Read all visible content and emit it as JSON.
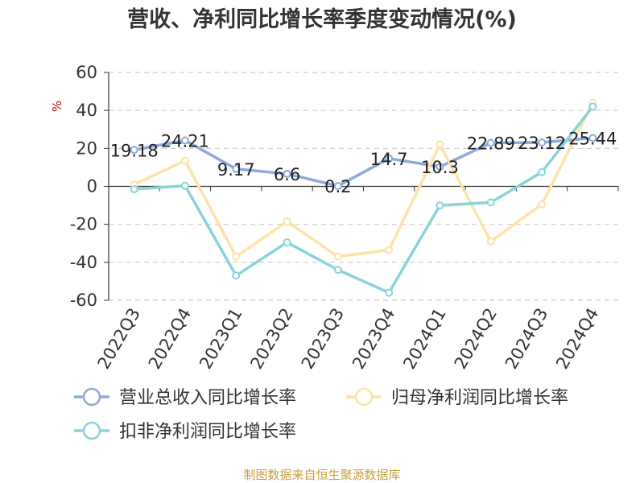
{
  "chart_data": {
    "type": "line",
    "title": "营收、净利同比增长率季度变动情况(%)",
    "ylabel": "%",
    "ylim": [
      -60,
      60
    ],
    "yticks": [
      60,
      40,
      20,
      0,
      -20,
      -40,
      -60
    ],
    "grid": true,
    "legend_position": "bottom",
    "categories": [
      "2022Q3",
      "2022Q4",
      "2023Q1",
      "2023Q2",
      "2023Q3",
      "2023Q4",
      "2024Q1",
      "2024Q2",
      "2024Q3",
      "2024Q4"
    ],
    "series": [
      {
        "name": "营业总收入同比增长率",
        "color": "#8eaadb",
        "values": [
          19.18,
          24.21,
          9.17,
          6.6,
          0.2,
          14.7,
          10.3,
          22.89,
          23.12,
          25.44
        ],
        "labels": [
          "19.18",
          "24.21",
          "9.17",
          "6.6",
          "0.2",
          "14.7",
          "10.3",
          "22.89",
          "23.12",
          "25.44"
        ]
      },
      {
        "name": "归母净利润同比增长率",
        "color": "#fde3a7",
        "values": [
          1,
          13.5,
          -37,
          -18.5,
          -37,
          -33.5,
          22,
          -29,
          -9.5,
          44
        ]
      },
      {
        "name": "扣非净利润同比增长率",
        "color": "#88d4d8",
        "values": [
          -1.5,
          0.3,
          -47,
          -29.5,
          -44,
          -56,
          -10,
          -8.5,
          7.5,
          42
        ]
      }
    ]
  },
  "footer": {
    "source": "制图数据来自恒生聚源数据库"
  }
}
